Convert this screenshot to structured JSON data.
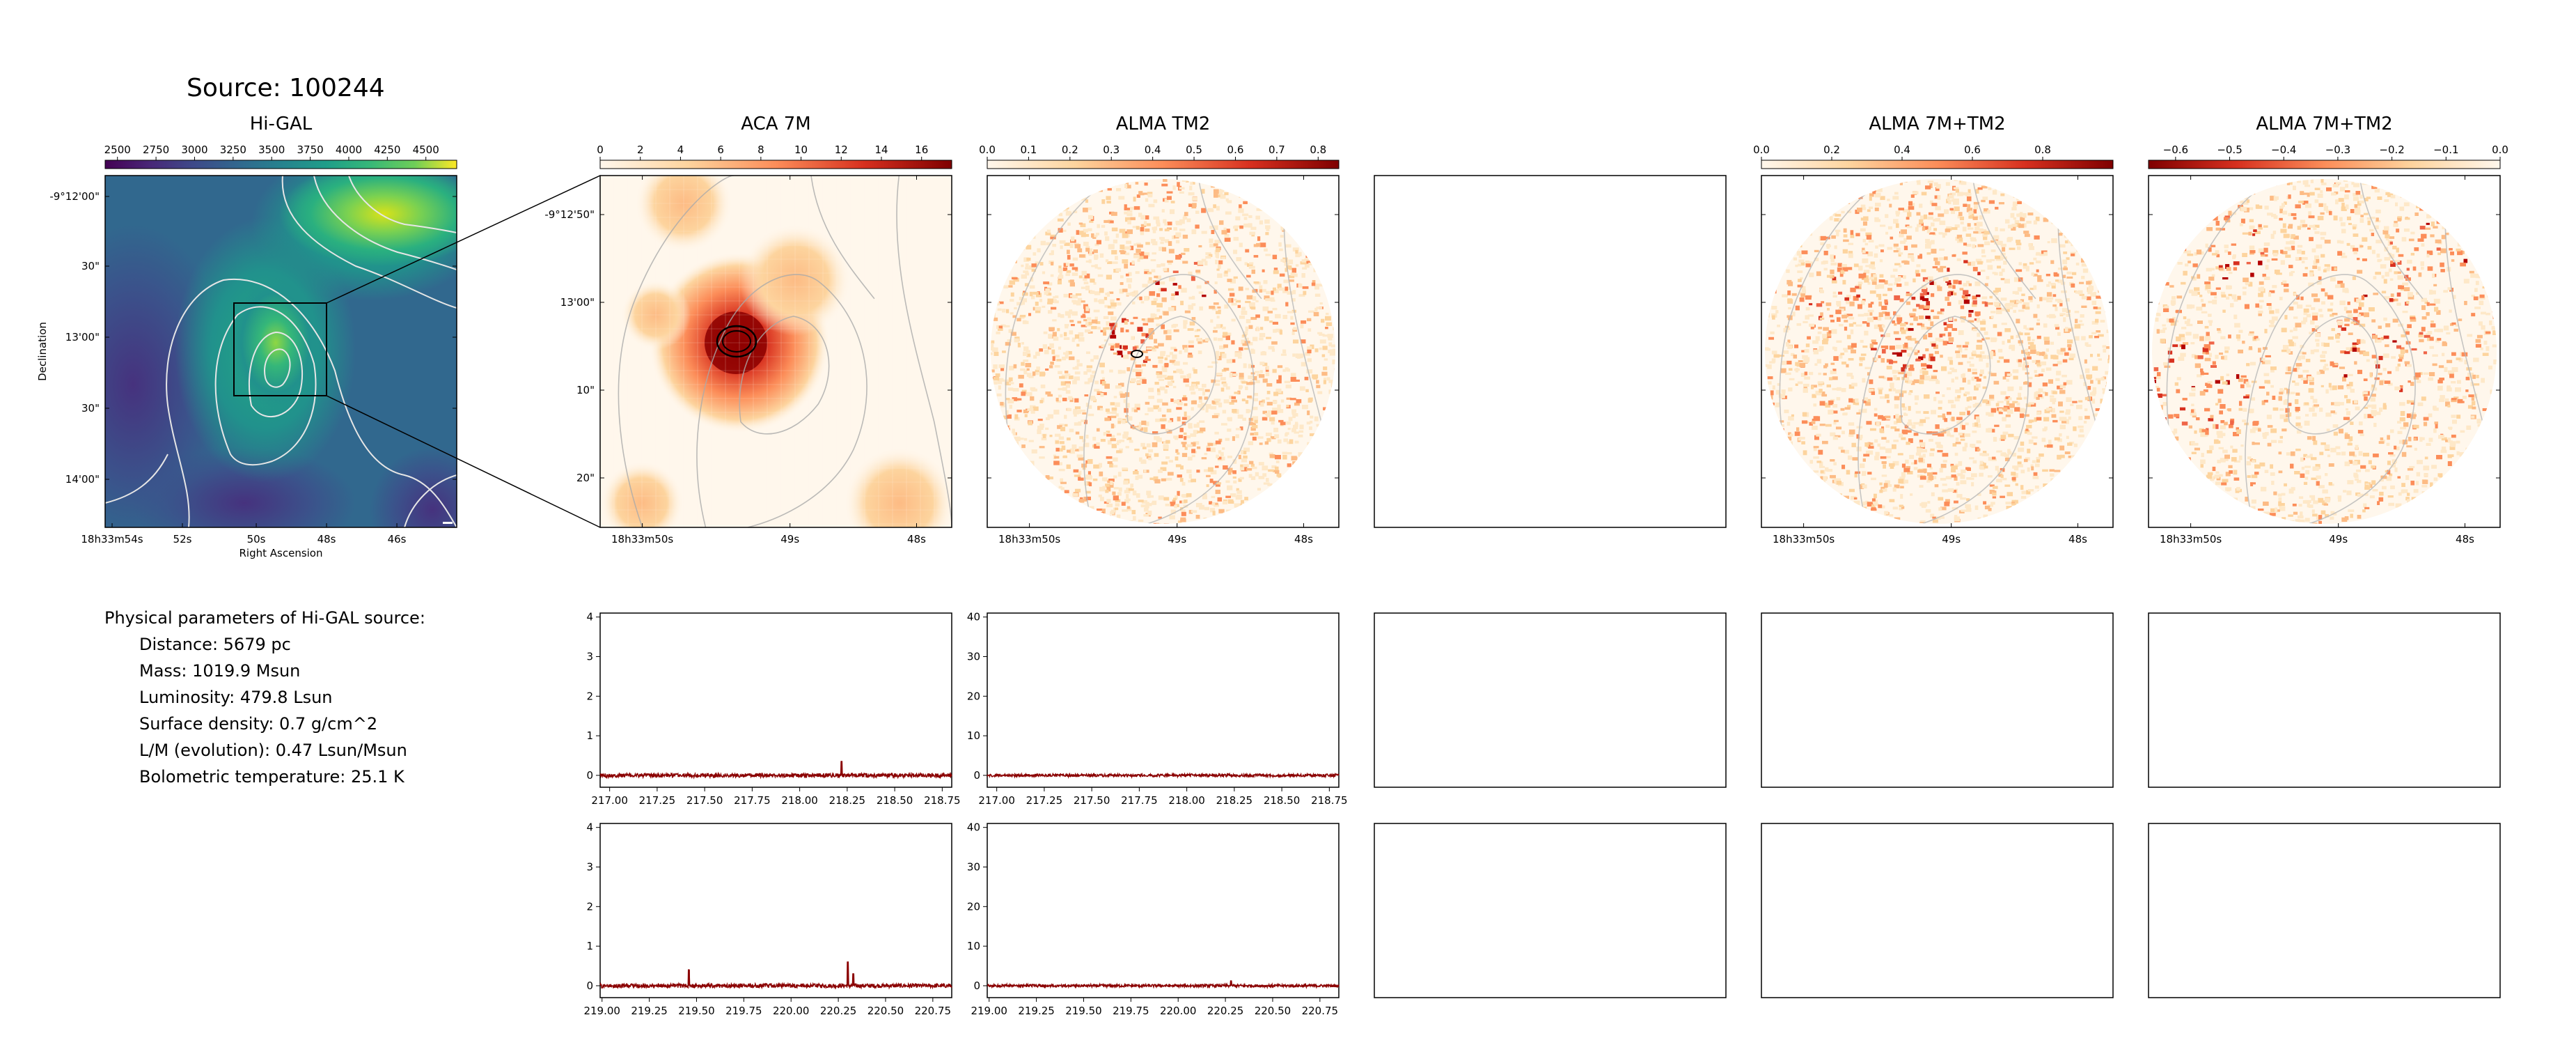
{
  "page": {
    "source_title": "Source: 100244",
    "physical_header": "Physical parameters of Hi-GAL source:",
    "physical_params": [
      "Distance: 5679 pc",
      "Mass: 1019.9 Msun",
      "Luminosity: 479.8 Lsun",
      "Surface density: 0.7 g/cm^2",
      "L/M (evolution): 0.47 Lsun/Msun",
      "Bolometric temperature: 25.1 K"
    ]
  },
  "chart_data": [
    {
      "type": "heatmap",
      "title": "Hi-GAL",
      "xlabel": "Right Ascension",
      "ylabel": "Declination",
      "colormap": "viridis",
      "colorbar": {
        "range": [
          2420,
          4700
        ],
        "ticks": [
          "2500",
          "2750",
          "3000",
          "3250",
          "3500",
          "3750",
          "4000",
          "4250",
          "4500"
        ]
      },
      "x_ticks": [
        "18h33m54s",
        "52s",
        "50s",
        "48s",
        "46s"
      ],
      "y_ticks": [
        "-9°12'00\"",
        "30\"",
        "13'00\"",
        "30\"",
        "14'00\""
      ],
      "contours": "white intensity contours",
      "zoom_box": "black rectangle linked to ACA 7M panel"
    },
    {
      "type": "heatmap",
      "title": "ACA 7M",
      "colormap": "OrRd",
      "colorbar": {
        "range": [
          0,
          17.5
        ],
        "ticks": [
          "0",
          "2",
          "4",
          "6",
          "8",
          "10",
          "12",
          "14",
          "16"
        ]
      },
      "x_ticks": [
        "18h33m50s",
        "49s",
        "48s"
      ],
      "y_ticks": [
        "-9°12'50\"",
        "13'00\"",
        "10\"",
        "20\""
      ]
    },
    {
      "type": "heatmap",
      "title": "ALMA TM2",
      "colormap": "OrRd",
      "colorbar": {
        "range": [
          0,
          0.85
        ],
        "ticks": [
          "0.0",
          "0.1",
          "0.2",
          "0.3",
          "0.4",
          "0.5",
          "0.6",
          "0.7",
          "0.8"
        ]
      },
      "x_ticks": [
        "18h33m50s",
        "49s",
        "48s"
      ]
    },
    {
      "type": "heatmap",
      "title": "",
      "empty": true
    },
    {
      "type": "heatmap",
      "title": "ALMA 7M+TM2",
      "colormap": "OrRd",
      "colorbar": {
        "range": [
          0,
          1.0
        ],
        "ticks": [
          "0.0",
          "0.2",
          "0.4",
          "0.6",
          "0.8"
        ]
      },
      "x_ticks": [
        "18h33m50s",
        "49s",
        "48s"
      ]
    },
    {
      "type": "heatmap",
      "title": "ALMA 7M+TM2",
      "colormap": "OrRd_r",
      "colorbar": {
        "range": [
          -0.65,
          0
        ],
        "ticks": [
          "−0.6",
          "−0.5",
          "−0.4",
          "−0.3",
          "−0.2",
          "−0.1",
          "0.0"
        ]
      },
      "x_ticks": [
        "18h33m50s",
        "49s",
        "48s"
      ]
    },
    {
      "type": "line",
      "panel": "spectrum ACA 7M, band 1",
      "xlim": [
        216.95,
        218.8
      ],
      "ylim": [
        -0.3,
        4.1
      ],
      "x_ticks": [
        "217.00",
        "217.25",
        "217.50",
        "217.75",
        "218.00",
        "218.25",
        "218.50",
        "218.75"
      ],
      "y_ticks": [
        "0",
        "1",
        "2",
        "3",
        "4"
      ],
      "color": "#8b0000",
      "baseline": 0,
      "noise": 0.05,
      "peaks": [
        {
          "x": 218.22,
          "y": 0.35
        }
      ]
    },
    {
      "type": "line",
      "panel": "spectrum ALMA TM2, band 1",
      "xlim": [
        216.95,
        218.8
      ],
      "ylim": [
        -3,
        41
      ],
      "x_ticks": [
        "217.00",
        "217.25",
        "217.50",
        "217.75",
        "218.00",
        "218.25",
        "218.50",
        "218.75"
      ],
      "y_ticks": [
        "0",
        "10",
        "20",
        "30",
        "40"
      ],
      "color": "#8b0000",
      "baseline": 0,
      "noise": 0.35,
      "peaks": []
    },
    {
      "type": "line",
      "panel": "spectrum ACA 7M, band 2",
      "xlim": [
        218.99,
        220.85
      ],
      "ylim": [
        -0.3,
        4.1
      ],
      "x_ticks": [
        "219.00",
        "219.25",
        "219.50",
        "219.75",
        "220.00",
        "220.25",
        "220.50",
        "220.75"
      ],
      "y_ticks": [
        "0",
        "1",
        "2",
        "3",
        "4"
      ],
      "color": "#8b0000",
      "baseline": 0,
      "noise": 0.05,
      "peaks": [
        {
          "x": 219.46,
          "y": 0.4
        },
        {
          "x": 220.3,
          "y": 0.6
        },
        {
          "x": 220.33,
          "y": 0.3
        }
      ]
    },
    {
      "type": "line",
      "panel": "spectrum ALMA TM2, band 2",
      "xlim": [
        218.99,
        220.85
      ],
      "ylim": [
        -3,
        41
      ],
      "x_ticks": [
        "219.00",
        "219.25",
        "219.50",
        "219.75",
        "220.00",
        "220.25",
        "220.50",
        "220.75"
      ],
      "y_ticks": [
        "0",
        "10",
        "20",
        "30",
        "40"
      ],
      "color": "#8b0000",
      "baseline": 0,
      "noise": 0.35,
      "peaks": [
        {
          "x": 220.28,
          "y": 1.2
        }
      ]
    }
  ]
}
